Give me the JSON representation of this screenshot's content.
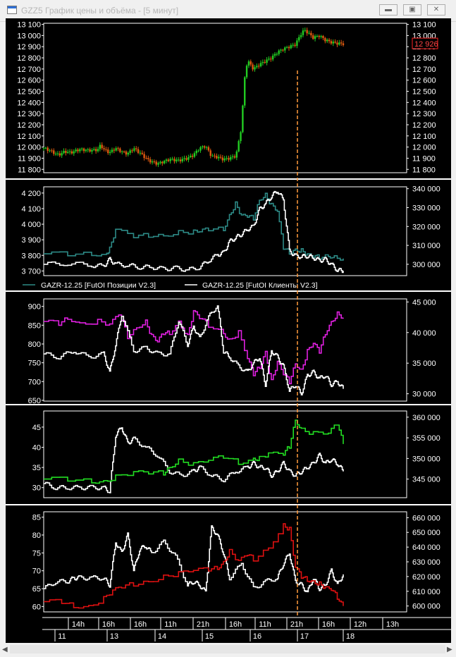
{
  "window": {
    "title": "GZZ5 График цены и объёма - [5 минут]",
    "minimize_icon": "minimize-icon",
    "restore_icon": "restore-icon",
    "close_icon": "close-icon"
  },
  "colors": {
    "bg": "#000000",
    "axis_text": "#ffffff",
    "separator": "#ffffff",
    "candle_up": "#22cc22",
    "candle_down": "#e05a10",
    "price_label_border": "#ff2222",
    "teal": "#2d8a86",
    "white": "#ffffff",
    "magenta": "#e020e0",
    "green": "#22dd22",
    "red": "#dd1111",
    "cursor": "#ff9a3c"
  },
  "chart_data": [
    {
      "type": "line",
      "name": "price",
      "subtype": "candlestick",
      "y_ticks": [
        "13 100",
        "13 000",
        "12 900",
        "12 800",
        "12 700",
        "12 600",
        "12 500",
        "12 400",
        "12 300",
        "12 200",
        "12 100",
        "12 000",
        "11 900",
        "11 800"
      ],
      "ylim": [
        11770,
        13110
      ],
      "last_price": "12 926",
      "series": [
        {
          "name": "",
          "x": [
            0,
            0.02,
            0.04,
            0.05,
            0.07,
            0.09,
            0.12,
            0.15,
            0.18,
            0.19,
            0.2,
            0.22,
            0.24,
            0.26,
            0.28,
            0.3,
            0.32,
            0.35,
            0.38,
            0.4,
            0.42,
            0.45,
            0.48,
            0.5,
            0.52,
            0.54,
            0.56,
            0.58,
            0.6,
            0.62,
            0.64,
            0.645,
            0.66,
            0.67,
            0.68,
            0.7,
            0.72,
            0.74,
            0.76,
            0.78,
            0.8,
            0.82,
            0.84,
            0.86,
            0.87,
            0.88,
            0.9,
            0.92,
            0.94,
            0.96,
            0.98,
            1.0
          ],
          "values": [
            11990,
            11970,
            11940,
            11930,
            11960,
            11950,
            11980,
            11970,
            11975,
            12020,
            11980,
            11950,
            11990,
            11960,
            11940,
            11990,
            11950,
            11880,
            11850,
            11870,
            11890,
            11880,
            11900,
            11930,
            11990,
            12010,
            11920,
            11910,
            11890,
            11900,
            11920,
            11960,
            12180,
            12600,
            12780,
            12700,
            12740,
            12770,
            12800,
            12850,
            12880,
            12900,
            12920,
            13020,
            13050,
            13030,
            12980,
            13000,
            12960,
            12940,
            12930,
            12926
          ]
        }
      ]
    },
    {
      "type": "line",
      "name": "positions",
      "left_ticks": [
        "4 200",
        "4 100",
        "4 000",
        "3 900",
        "3 800",
        "3 700"
      ],
      "left_ylim": [
        3670,
        4240
      ],
      "right_ticks": [
        "340 000",
        "330 000",
        "320 000",
        "310 000",
        "300 000"
      ],
      "right_ylim": [
        294000,
        341000
      ],
      "legend": [
        "GAZR-12.25 [FutOI Позиции V2.3]",
        "GAZR-12.25 [FutOI Клиенты V2.3]"
      ],
      "series": [
        {
          "name": "GAZR-12.25 [FutOI Позиции V2.3]",
          "axis": "left",
          "x": [
            0,
            0.08,
            0.16,
            0.21,
            0.22,
            0.24,
            0.3,
            0.35,
            0.4,
            0.45,
            0.5,
            0.52,
            0.55,
            0.6,
            0.62,
            0.64,
            0.66,
            0.68,
            0.7,
            0.72,
            0.74,
            0.76,
            0.78,
            0.8,
            0.82,
            0.84,
            0.86,
            0.88,
            0.9,
            0.92,
            0.95,
            0.97,
            1.0
          ],
          "values": [
            3810,
            3810,
            3810,
            3810,
            3840,
            3960,
            3920,
            3930,
            3930,
            3950,
            3950,
            3950,
            3970,
            3970,
            4060,
            4130,
            4050,
            4050,
            4040,
            4160,
            4190,
            4120,
            4080,
            3850,
            3820,
            3840,
            3830,
            3800,
            3790,
            3790,
            3800,
            3790,
            3780
          ]
        },
        {
          "name": "GAZR-12.25 [FutOI Клиенты V2.3]",
          "axis": "right",
          "x": [
            0,
            0.08,
            0.16,
            0.2,
            0.22,
            0.24,
            0.28,
            0.32,
            0.36,
            0.4,
            0.44,
            0.48,
            0.52,
            0.55,
            0.58,
            0.6,
            0.62,
            0.64,
            0.66,
            0.68,
            0.7,
            0.72,
            0.74,
            0.76,
            0.78,
            0.8,
            0.82,
            0.84,
            0.86,
            0.88,
            0.9,
            0.92,
            0.94,
            0.96,
            0.98,
            1.0
          ],
          "values": [
            300000,
            300500,
            299500,
            299000,
            302500,
            300000,
            299500,
            298500,
            298500,
            297500,
            298000,
            297000,
            298500,
            302000,
            305000,
            306000,
            312000,
            314000,
            316000,
            318500,
            320000,
            329000,
            332000,
            336000,
            339000,
            334000,
            307000,
            304500,
            304000,
            304500,
            303500,
            302000,
            302500,
            300000,
            297000,
            296500
          ]
        }
      ]
    },
    {
      "type": "line",
      "name": "indicator-3",
      "left_ticks": [
        "900",
        "850",
        "800",
        "750",
        "700",
        "650"
      ],
      "left_ylim": [
        648,
        920
      ],
      "right_ticks": [
        "45 000",
        "40 000",
        "35 000",
        "30 000"
      ],
      "right_ylim": [
        28800,
        45500
      ],
      "series": [
        {
          "name": "",
          "axis": "left",
          "x": [
            0,
            0.05,
            0.08,
            0.12,
            0.18,
            0.22,
            0.25,
            0.28,
            0.31,
            0.34,
            0.36,
            0.38,
            0.4,
            0.42,
            0.45,
            0.48,
            0.5,
            0.52,
            0.55,
            0.6,
            0.62,
            0.65,
            0.68,
            0.7,
            0.72,
            0.74,
            0.76,
            0.78,
            0.8,
            0.82,
            0.84,
            0.86,
            0.88,
            0.9,
            0.92,
            0.94,
            0.96,
            0.98,
            1.0
          ],
          "values": [
            860,
            855,
            870,
            855,
            860,
            850,
            880,
            820,
            845,
            860,
            820,
            805,
            830,
            830,
            860,
            820,
            885,
            870,
            850,
            830,
            810,
            830,
            760,
            720,
            740,
            780,
            700,
            750,
            720,
            700,
            750,
            730,
            780,
            800,
            780,
            830,
            860,
            880,
            870
          ]
        },
        {
          "name": "",
          "axis": "right",
          "x": [
            0,
            0.05,
            0.1,
            0.15,
            0.2,
            0.22,
            0.24,
            0.26,
            0.3,
            0.34,
            0.38,
            0.42,
            0.45,
            0.48,
            0.5,
            0.52,
            0.55,
            0.58,
            0.6,
            0.62,
            0.65,
            0.68,
            0.7,
            0.72,
            0.74,
            0.76,
            0.78,
            0.8,
            0.82,
            0.84,
            0.86,
            0.88,
            0.9,
            0.92,
            0.94,
            0.96,
            0.98,
            1.0
          ],
          "values": [
            36500,
            36000,
            37000,
            36000,
            36500,
            33500,
            38000,
            43000,
            37000,
            37500,
            36500,
            36500,
            42000,
            38000,
            41000,
            39000,
            42500,
            44500,
            37000,
            36000,
            34500,
            33500,
            35000,
            36000,
            31500,
            37000,
            36000,
            34500,
            30500,
            31500,
            30000,
            33000,
            33500,
            32500,
            33000,
            31500,
            32000,
            30800
          ]
        }
      ]
    },
    {
      "type": "line",
      "name": "indicator-4",
      "left_ticks": [
        "45",
        "40",
        "35",
        "30"
      ],
      "left_ylim": [
        27.5,
        49
      ],
      "right_ticks": [
        "360 000",
        "355 000",
        "350 000",
        "345 000"
      ],
      "right_ylim": [
        340500,
        361500
      ],
      "series": [
        {
          "name": "",
          "axis": "left",
          "x": [
            0,
            0.04,
            0.08,
            0.12,
            0.16,
            0.2,
            0.22,
            0.24,
            0.26,
            0.28,
            0.3,
            0.34,
            0.38,
            0.42,
            0.46,
            0.5,
            0.52,
            0.56,
            0.6,
            0.64,
            0.68,
            0.7,
            0.72,
            0.74,
            0.76,
            0.78,
            0.8,
            0.82,
            0.84,
            0.86,
            0.88,
            0.9,
            0.92,
            0.94,
            0.96,
            0.98,
            1.0
          ],
          "values": [
            31,
            30,
            30,
            30,
            30,
            30,
            29,
            43,
            45,
            41,
            42,
            40,
            38,
            34,
            33,
            34,
            35,
            33,
            32,
            34,
            35,
            36,
            35,
            35,
            33,
            34,
            36,
            34,
            33,
            34,
            35,
            36,
            38,
            36,
            37,
            36,
            34
          ]
        },
        {
          "name": "",
          "axis": "right",
          "x": [
            0,
            0.08,
            0.16,
            0.2,
            0.24,
            0.3,
            0.35,
            0.4,
            0.42,
            0.45,
            0.5,
            0.55,
            0.6,
            0.65,
            0.7,
            0.72,
            0.75,
            0.8,
            0.82,
            0.84,
            0.86,
            0.9,
            0.95,
            0.98,
            1.0
          ],
          "values": [
            345000,
            345000,
            344500,
            344500,
            345500,
            346500,
            346500,
            346500,
            348000,
            349500,
            348500,
            349500,
            350500,
            349000,
            350000,
            350000,
            351000,
            351000,
            353000,
            359500,
            357000,
            356000,
            356000,
            358500,
            353500
          ]
        }
      ]
    },
    {
      "type": "line",
      "name": "indicator-5",
      "left_ticks": [
        "85",
        "80",
        "75",
        "70",
        "65",
        "60"
      ],
      "left_ylim": [
        58.5,
        86.5
      ],
      "right_ticks": [
        "660 000",
        "650 000",
        "640 000",
        "630 000",
        "620 000",
        "610 000",
        "600 000"
      ],
      "right_ylim": [
        596000,
        664000
      ],
      "series": [
        {
          "name": "",
          "axis": "left",
          "x": [
            0,
            0.04,
            0.08,
            0.1,
            0.12,
            0.16,
            0.2,
            0.22,
            0.24,
            0.26,
            0.28,
            0.3,
            0.32,
            0.34,
            0.36,
            0.4,
            0.44,
            0.48,
            0.5,
            0.52,
            0.54,
            0.56,
            0.58,
            0.6,
            0.62,
            0.66,
            0.7,
            0.74,
            0.78,
            0.8,
            0.82,
            0.84,
            0.86,
            0.88,
            0.9,
            0.92,
            0.94,
            0.96,
            0.98,
            1.0
          ],
          "values": [
            65,
            67,
            67,
            68,
            68,
            68,
            68,
            66,
            78,
            75,
            80,
            70,
            76,
            77,
            75,
            78,
            74,
            66,
            67,
            66,
            64,
            82,
            80,
            75,
            68,
            72,
            65,
            67,
            68,
            72,
            75,
            67,
            66,
            64,
            68,
            65,
            66,
            70,
            66,
            69
          ]
        },
        {
          "name": "",
          "axis": "right",
          "x": [
            0,
            0.06,
            0.1,
            0.15,
            0.2,
            0.23,
            0.26,
            0.3,
            0.35,
            0.4,
            0.45,
            0.5,
            0.55,
            0.58,
            0.6,
            0.62,
            0.65,
            0.68,
            0.7,
            0.75,
            0.8,
            0.82,
            0.84,
            0.86,
            0.88,
            0.9,
            0.92,
            0.94,
            0.96,
            0.98,
            1.0
          ],
          "values": [
            603000,
            603000,
            600000,
            600000,
            605000,
            610000,
            613000,
            615000,
            617000,
            620000,
            622000,
            624000,
            625000,
            626000,
            630000,
            637000,
            630000,
            635000,
            632000,
            640000,
            655000,
            652000,
            626000,
            620000,
            618000,
            617000,
            615000,
            612000,
            611000,
            606000,
            600000
          ]
        }
      ]
    }
  ],
  "time_axis": {
    "hours": [
      "14h",
      "16h",
      "16h",
      "11h",
      "21h",
      "16h",
      "11h",
      "21h",
      "16h",
      "12h",
      "13h"
    ],
    "days": [
      "11",
      "13",
      "14",
      "15",
      "16",
      "17",
      "18"
    ]
  },
  "scrollbar": {
    "left_icon": "scroll-left-icon",
    "right_icon": "scroll-right-icon"
  }
}
